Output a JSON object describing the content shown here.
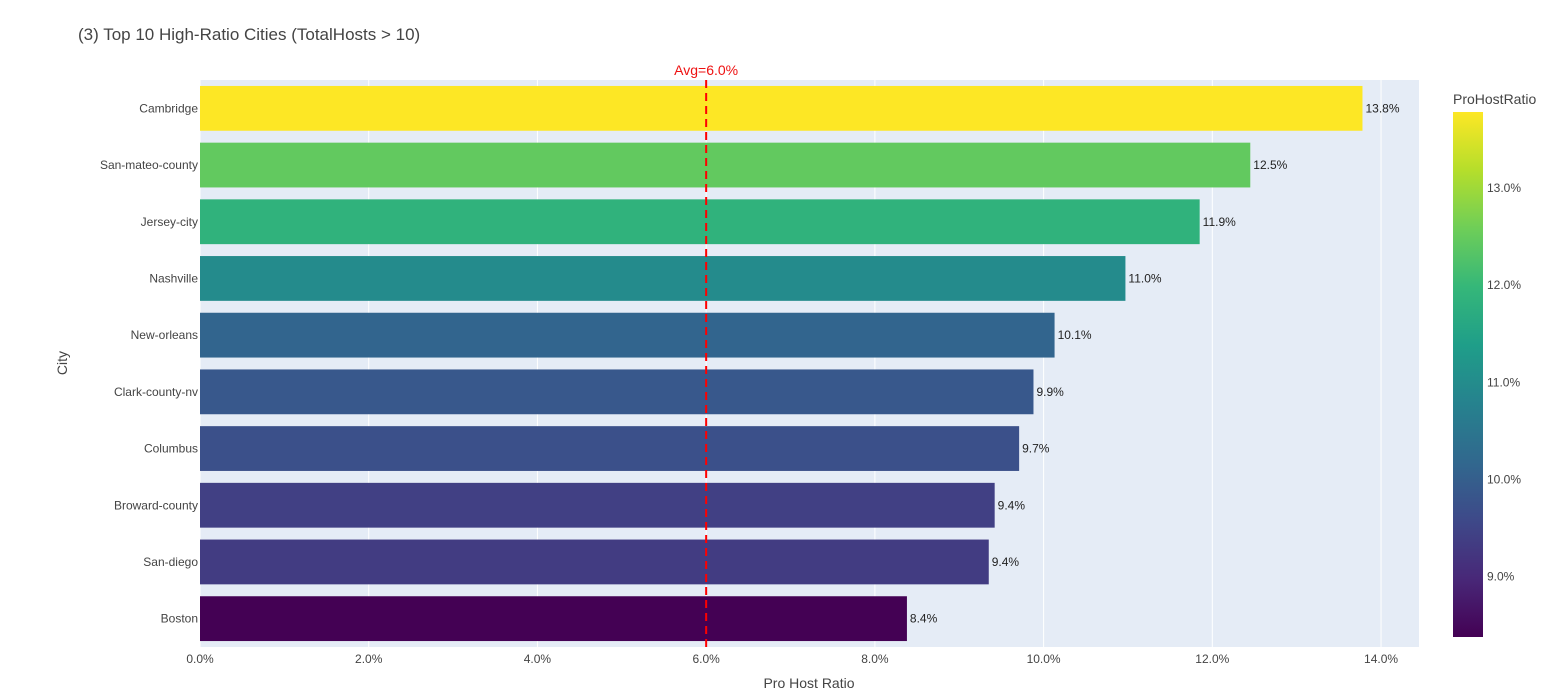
{
  "chart_data": {
    "type": "bar",
    "orientation": "horizontal",
    "title": "(3) Top 10 High-Ratio Cities (TotalHosts > 10)",
    "xlabel": "Pro Host Ratio",
    "ylabel": "City",
    "categories": [
      "Cambridge",
      "San-mateo-county",
      "Jersey-city",
      "Nashville",
      "New-orleans",
      "Clark-county-nv",
      "Columbus",
      "Broward-county",
      "San-diego",
      "Boston"
    ],
    "values": [
      0.1378,
      0.1245,
      0.1185,
      0.1097,
      0.1013,
      0.0988,
      0.0971,
      0.0942,
      0.0935,
      0.0838
    ],
    "value_labels": [
      "13.8%",
      "12.5%",
      "11.9%",
      "11.0%",
      "10.1%",
      "9.9%",
      "9.7%",
      "9.4%",
      "9.4%",
      "8.4%"
    ],
    "xlim": [
      0,
      0.1445
    ],
    "x_ticks": [
      0,
      0.02,
      0.04,
      0.06,
      0.08,
      0.1,
      0.12,
      0.14
    ],
    "x_tick_labels": [
      "0.0%",
      "2.0%",
      "4.0%",
      "6.0%",
      "8.0%",
      "10.0%",
      "12.0%",
      "14.0%"
    ],
    "grid": true,
    "reference_line": {
      "value": 0.06,
      "label": "Avg=6.0%",
      "color": "#ff0000",
      "style": "dashed"
    },
    "colorbar": {
      "title": "ProHostRatio",
      "range": [
        0.0838,
        0.1378
      ],
      "ticks": [
        0.09,
        0.1,
        0.11,
        0.12,
        0.13
      ],
      "tick_labels": [
        "9.0%",
        "10.0%",
        "11.0%",
        "12.0%",
        "13.0%"
      ],
      "colorscale": [
        "#440154",
        "#482878",
        "#3e4989",
        "#31688e",
        "#26828e",
        "#1f9e89",
        "#35b779",
        "#6ece58",
        "#b5de2b",
        "#fde725"
      ]
    },
    "plot_background": "#e5ecf6"
  }
}
